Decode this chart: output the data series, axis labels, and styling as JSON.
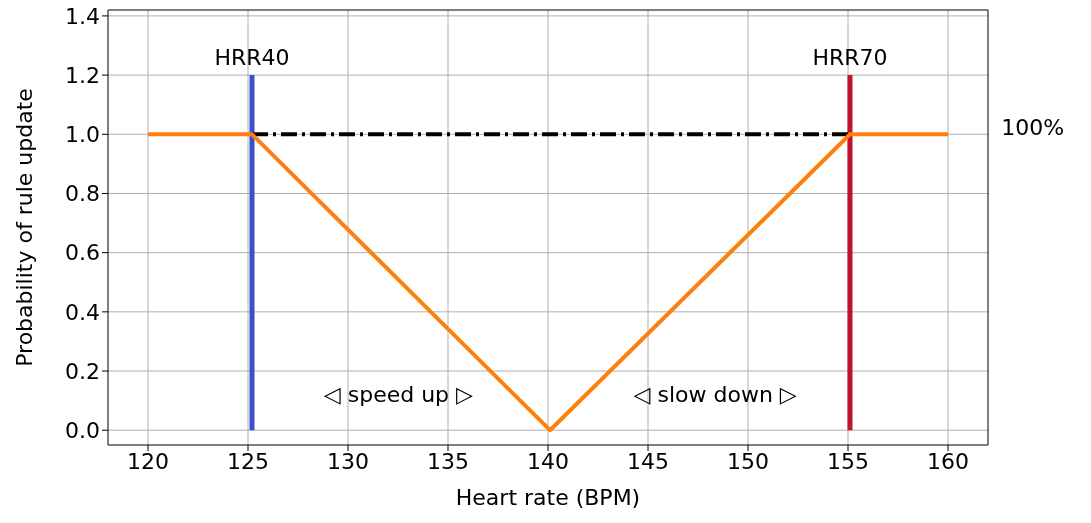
{
  "chart_data": {
    "type": "line",
    "xlabel": "Heart rate (BPM)",
    "ylabel": "Probability of rule update",
    "xlim": [
      118,
      162
    ],
    "ylim": [
      -0.05,
      1.42
    ],
    "xticks": [
      120,
      125,
      130,
      135,
      140,
      145,
      150,
      155,
      160
    ],
    "yticks": [
      {
        "value": 0,
        "label": "0.0"
      },
      {
        "value": 0.2,
        "label": "0.2"
      },
      {
        "value": 0.4,
        "label": "0.4"
      },
      {
        "value": 0.6,
        "label": "0.6"
      },
      {
        "value": 0.8,
        "label": "0.8"
      },
      {
        "value": 1,
        "label": "1.0"
      },
      {
        "value": 1.2,
        "label": "1.2"
      },
      {
        "value": 1.4,
        "label": "1.4"
      }
    ],
    "grid": true,
    "legend": false,
    "marker": "none",
    "series": [
      {
        "type": "line",
        "color": "#000000",
        "line_style": "dashed",
        "x": [
          125.2,
          155.1
        ],
        "values": [
          1,
          1
        ]
      },
      {
        "type": "line",
        "color": "#ff7f0e",
        "line_style": "solid",
        "x": [
          120,
          125.2,
          140.1,
          155.1,
          160
        ],
        "values": [
          1,
          1,
          0,
          1,
          1
        ]
      }
    ],
    "ref_lines": [
      {
        "axis": "x",
        "value": 125.2,
        "label": "HRR40",
        "color": "#3b50c8"
      },
      {
        "axis": "x",
        "value": 155.1,
        "label": "HRR70",
        "color": "#c0142c"
      }
    ],
    "annotations": [
      "◁ speed up ▷",
      "◁ slow down ▷",
      "100%"
    ]
  }
}
